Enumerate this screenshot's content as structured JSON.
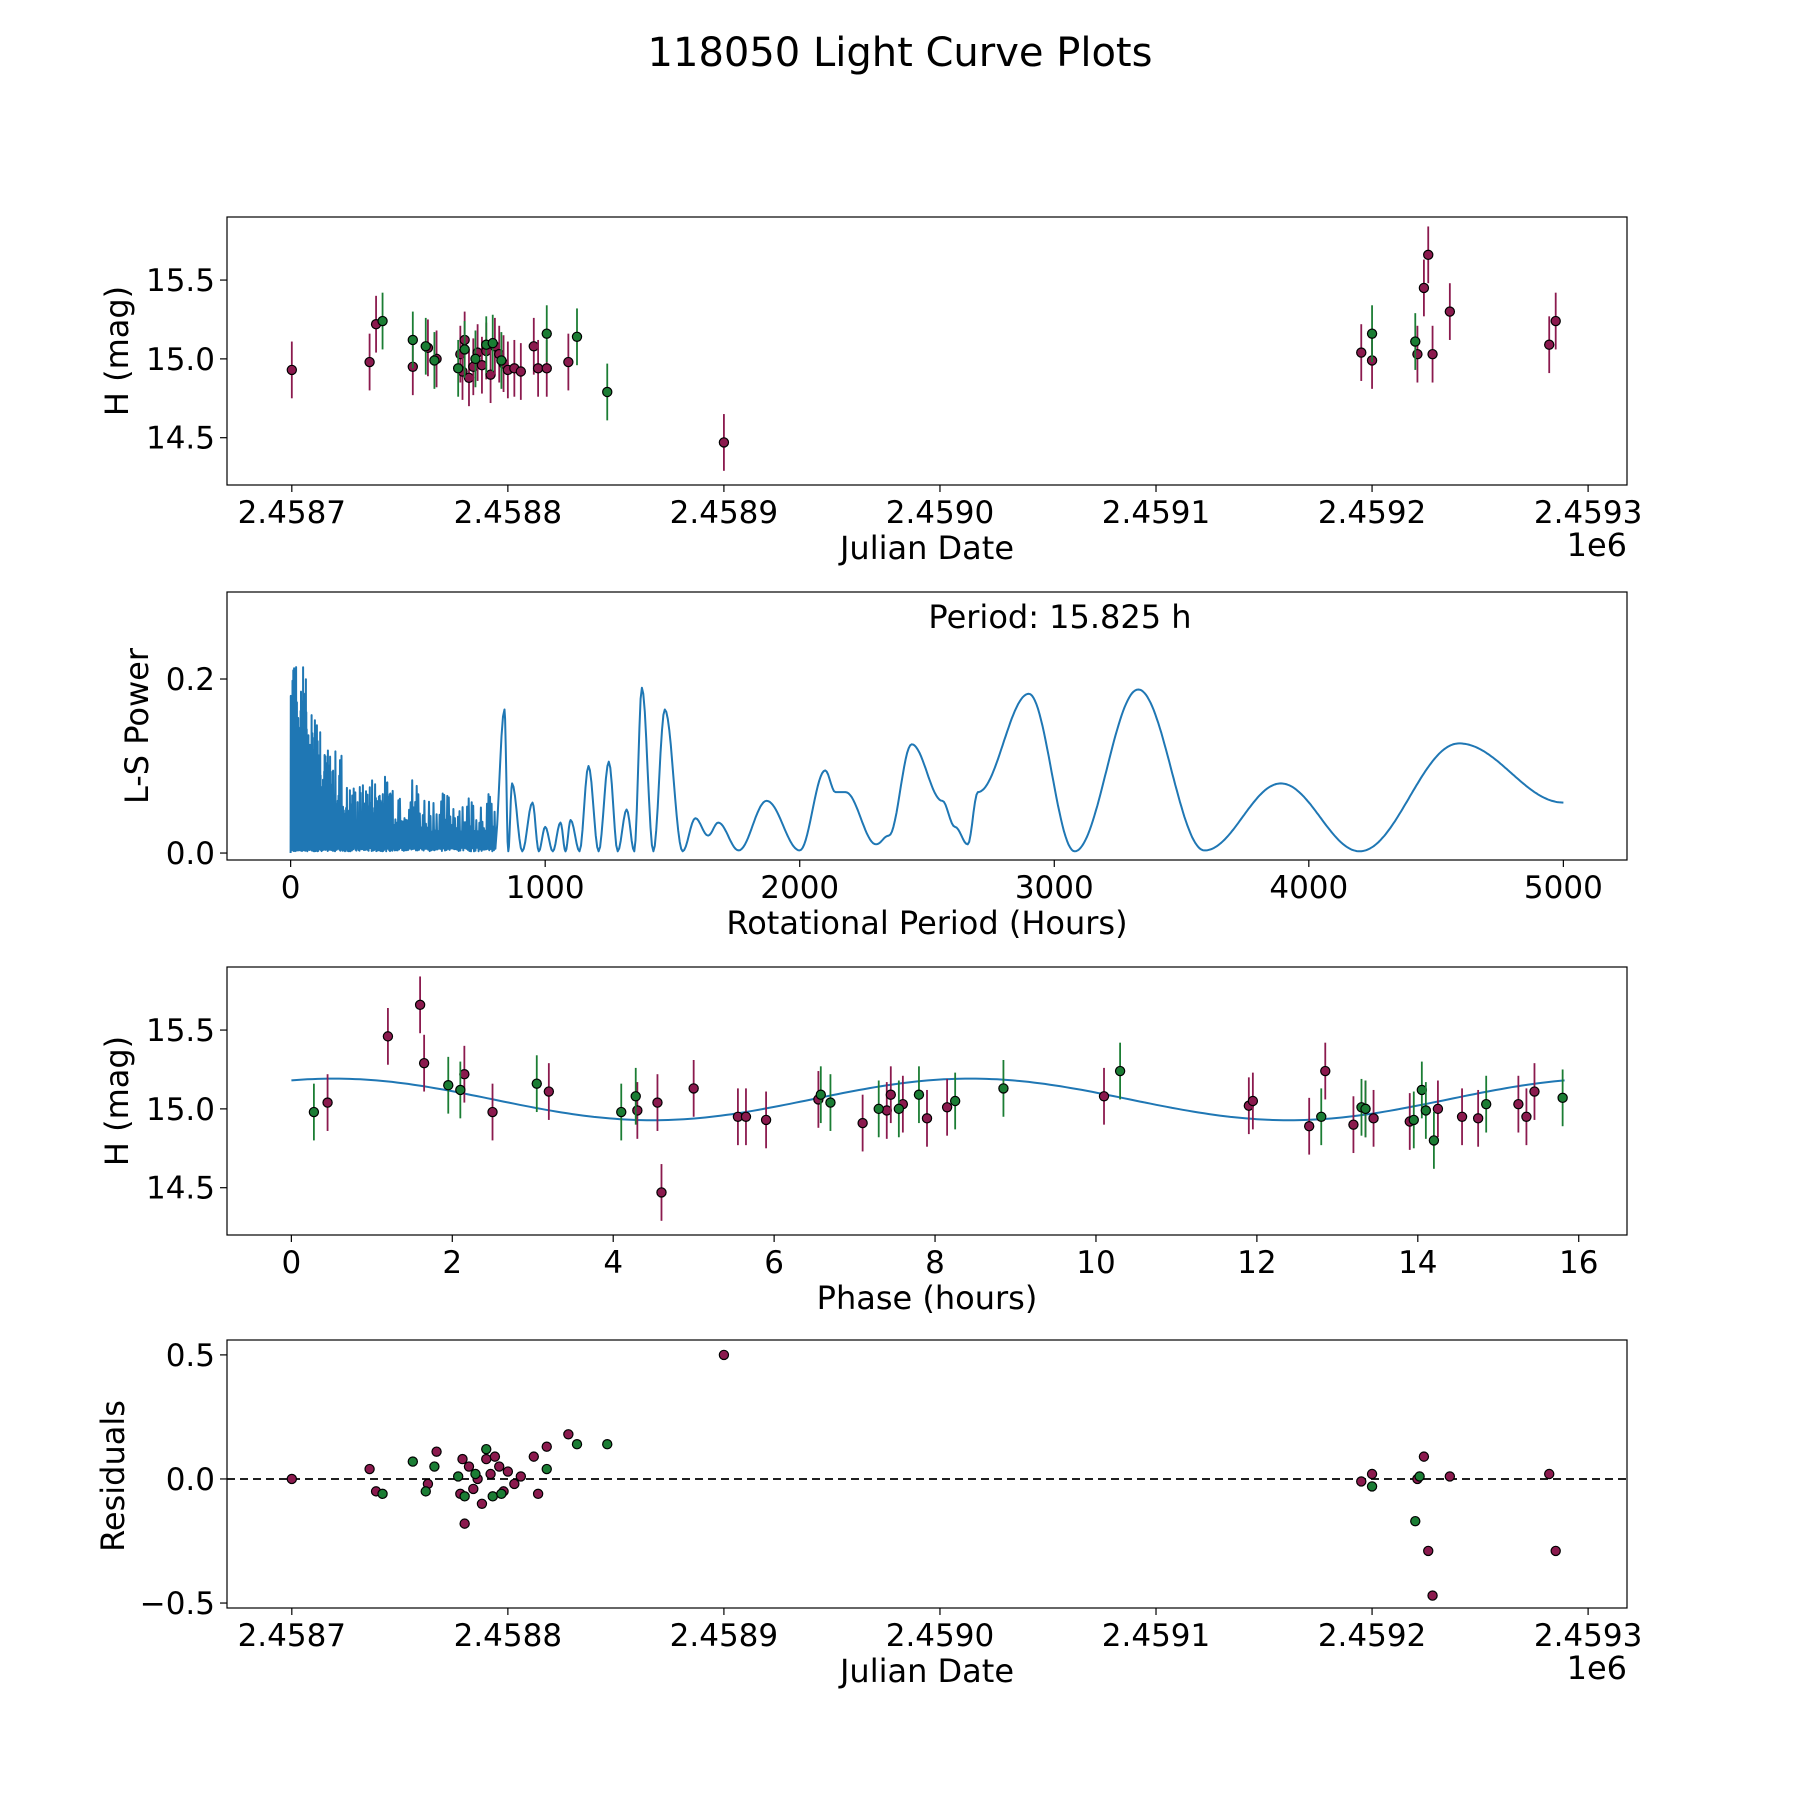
{
  "figure_title": "118050 Light Curve Plots",
  "colors": {
    "magenta": "#8b1a4e",
    "green": "#1b7d34",
    "curve": "#1f77b4",
    "marker_edge": "#000000"
  },
  "chart_data": [
    {
      "id": "lightcurve",
      "type": "scatter",
      "title": "",
      "xlabel": "Julian Date",
      "ylabel": "H (mag)",
      "x_offset_label": "1e6",
      "xlim": [
        2458670,
        2459318
      ],
      "ylim": [
        14.2,
        15.9
      ],
      "xticks": [
        2458700,
        2458800,
        2458900,
        2459000,
        2459100,
        2459200,
        2459300
      ],
      "xtick_labels": [
        "2.4587",
        "2.4588",
        "2.4589",
        "2.4590",
        "2.4591",
        "2.4592",
        "2.4593"
      ],
      "yticks": [
        14.5,
        15.0,
        15.5
      ],
      "ytick_labels": [
        "14.5",
        "15.0",
        "15.5"
      ],
      "series": [
        {
          "name": "magenta",
          "color": "#8b1a4e",
          "err": 0.18,
          "x": [
            2458700,
            2458736,
            2458739,
            2458756,
            2458763,
            2458767,
            2458778,
            2458779,
            2458780,
            2458782,
            2458784,
            2458786,
            2458788,
            2458790,
            2458792,
            2458794,
            2458796,
            2458798,
            2458800,
            2458803,
            2458806,
            2458812,
            2458814,
            2458818,
            2458828,
            2458900,
            2459195,
            2459200,
            2459221,
            2459224,
            2459226,
            2459228,
            2459236,
            2459282,
            2459285
          ],
          "y": [
            14.93,
            14.98,
            15.22,
            14.95,
            15.07,
            15.0,
            15.03,
            14.92,
            15.12,
            14.88,
            14.95,
            15.04,
            14.96,
            15.05,
            14.9,
            15.08,
            15.03,
            14.97,
            14.93,
            14.94,
            14.92,
            15.08,
            14.94,
            14.94,
            14.98,
            14.47,
            15.04,
            14.99,
            15.03,
            15.45,
            15.66,
            15.03,
            15.3,
            15.09,
            15.24
          ]
        },
        {
          "name": "green",
          "color": "#1b7d34",
          "err": 0.18,
          "x": [
            2458742,
            2458756,
            2458762,
            2458766,
            2458777,
            2458780,
            2458785,
            2458790,
            2458793,
            2458797,
            2458818,
            2458832,
            2458846,
            2459200,
            2459220
          ],
          "y": [
            15.24,
            15.12,
            15.08,
            14.99,
            14.94,
            15.06,
            15.0,
            15.09,
            15.1,
            14.99,
            15.16,
            15.14,
            14.79,
            15.16,
            15.11
          ]
        }
      ]
    },
    {
      "id": "periodogram",
      "type": "line",
      "title": "",
      "annotation": "Period: 15.825 h",
      "xlabel": "Rotational Period (Hours)",
      "ylabel": "L-S Power",
      "xlim": [
        -250,
        5250
      ],
      "ylim": [
        -0.008,
        0.3
      ],
      "xticks": [
        0,
        1000,
        2000,
        3000,
        4000,
        5000
      ],
      "xtick_labels": [
        "0",
        "1000",
        "2000",
        "3000",
        "4000",
        "5000"
      ],
      "yticks": [
        0.0,
        0.2
      ],
      "ytick_labels": [
        "0.0",
        "0.2"
      ],
      "peaks": [
        [
          840,
          0.165
        ],
        [
          870,
          0.08
        ],
        [
          950,
          0.058
        ],
        [
          1000,
          0.03
        ],
        [
          1060,
          0.035
        ],
        [
          1100,
          0.038
        ],
        [
          1170,
          0.1
        ],
        [
          1250,
          0.105
        ],
        [
          1320,
          0.05
        ],
        [
          1380,
          0.19
        ],
        [
          1470,
          0.165
        ],
        [
          1590,
          0.04
        ],
        [
          1680,
          0.035
        ],
        [
          1870,
          0.06
        ],
        [
          2100,
          0.095
        ],
        [
          2180,
          0.07
        ],
        [
          2440,
          0.125
        ],
        [
          2560,
          0.06
        ],
        [
          2700,
          0.07
        ],
        [
          2900,
          0.183
        ],
        [
          3330,
          0.188
        ],
        [
          3890,
          0.08
        ],
        [
          4590,
          0.126
        ]
      ],
      "troughs": [
        [
          1540,
          0.002
        ],
        [
          1640,
          0.02
        ],
        [
          1760,
          0.003
        ],
        [
          2000,
          0.003
        ],
        [
          2140,
          0.07
        ],
        [
          2300,
          0.01
        ],
        [
          2350,
          0.02
        ],
        [
          2610,
          0.03
        ],
        [
          2660,
          0.01
        ],
        [
          3080,
          0.002
        ],
        [
          3590,
          0.003
        ],
        [
          4200,
          0.002
        ]
      ],
      "end_point": [
        5000,
        0.058
      ],
      "noisy_region_max_x": 800
    },
    {
      "id": "phased",
      "type": "scatter",
      "title": "",
      "xlabel": "Phase (hours)",
      "ylabel": "H (mag)",
      "xlim": [
        -0.8,
        16.6
      ],
      "ylim": [
        14.2,
        15.9
      ],
      "xticks": [
        0,
        2,
        4,
        6,
        8,
        10,
        12,
        14,
        16
      ],
      "xtick_labels": [
        "0",
        "2",
        "4",
        "6",
        "8",
        "10",
        "12",
        "14",
        "16"
      ],
      "yticks": [
        14.5,
        15.0,
        15.5
      ],
      "ytick_labels": [
        "14.5",
        "15.0",
        "15.5"
      ],
      "model": {
        "period_hours": 15.825,
        "mean": 15.06,
        "amp": 0.132,
        "phi": 1.15
      },
      "series": [
        {
          "name": "magenta",
          "color": "#8b1a4e",
          "err": 0.18,
          "x": [
            0.45,
            1.2,
            1.6,
            1.65,
            2.15,
            2.5,
            3.2,
            4.3,
            4.55,
            4.6,
            5.0,
            5.55,
            5.65,
            5.9,
            6.55,
            7.1,
            7.4,
            7.45,
            7.6,
            7.9,
            8.15,
            10.1,
            11.9,
            11.95,
            12.65,
            12.85,
            13.2,
            13.35,
            13.45,
            13.9,
            14.25,
            14.55,
            14.75,
            15.25,
            15.35,
            15.45
          ],
          "y": [
            15.04,
            15.46,
            15.66,
            15.29,
            15.22,
            14.98,
            15.11,
            14.99,
            15.04,
            14.47,
            15.13,
            14.95,
            14.95,
            14.93,
            15.06,
            14.91,
            14.99,
            15.09,
            15.03,
            14.94,
            15.01,
            15.08,
            15.02,
            15.05,
            14.89,
            15.24,
            14.9,
            15.0,
            14.94,
            14.92,
            15.0,
            14.95,
            14.94,
            15.03,
            14.95,
            15.11
          ]
        },
        {
          "name": "green",
          "color": "#1b7d34",
          "err": 0.18,
          "x": [
            0.28,
            1.95,
            2.1,
            3.05,
            4.1,
            4.28,
            6.58,
            6.7,
            7.3,
            7.55,
            7.8,
            8.25,
            8.85,
            10.3,
            12.8,
            13.3,
            13.35,
            13.95,
            14.05,
            14.1,
            14.2,
            14.85,
            15.8
          ],
          "y": [
            14.98,
            15.15,
            15.12,
            15.16,
            14.98,
            15.08,
            15.09,
            15.04,
            15.0,
            15.0,
            15.09,
            15.05,
            15.13,
            15.24,
            14.95,
            15.01,
            15.0,
            14.93,
            15.12,
            14.99,
            14.8,
            15.03,
            15.07
          ]
        }
      ]
    },
    {
      "id": "residuals",
      "type": "scatter",
      "title": "",
      "xlabel": "Julian Date",
      "ylabel": "Residuals",
      "x_offset_label": "1e6",
      "xlim": [
        2458670,
        2459318
      ],
      "ylim": [
        -0.52,
        0.56
      ],
      "xticks": [
        2458700,
        2458800,
        2458900,
        2459000,
        2459100,
        2459200,
        2459300
      ],
      "xtick_labels": [
        "2.4587",
        "2.4588",
        "2.4589",
        "2.4590",
        "2.4591",
        "2.4592",
        "2.4593"
      ],
      "yticks": [
        -0.5,
        0.0,
        0.5
      ],
      "ytick_labels": [
        "−0.5",
        "0.0",
        "0.5"
      ],
      "zero_line": 0.0,
      "series": [
        {
          "name": "magenta",
          "color": "#8b1a4e",
          "x": [
            2458700,
            2458736,
            2458739,
            2458763,
            2458767,
            2458778,
            2458779,
            2458780,
            2458782,
            2458784,
            2458786,
            2458788,
            2458790,
            2458792,
            2458794,
            2458796,
            2458798,
            2458800,
            2458803,
            2458806,
            2458812,
            2458814,
            2458818,
            2458828,
            2458900,
            2459195,
            2459200,
            2459221,
            2459224,
            2459226,
            2459228,
            2459236,
            2459282,
            2459285
          ],
          "y": [
            0.0,
            0.04,
            -0.05,
            -0.02,
            0.11,
            -0.06,
            0.08,
            -0.18,
            0.05,
            -0.04,
            0.0,
            -0.1,
            0.08,
            0.02,
            0.09,
            0.05,
            -0.05,
            0.03,
            -0.02,
            0.01,
            0.09,
            -0.06,
            0.13,
            0.18,
            0.5,
            -0.01,
            0.02,
            0.0,
            0.09,
            -0.29,
            -0.47,
            0.01,
            0.02,
            -0.29
          ]
        },
        {
          "name": "green",
          "color": "#1b7d34",
          "x": [
            2458742,
            2458756,
            2458762,
            2458766,
            2458777,
            2458780,
            2458785,
            2458790,
            2458793,
            2458797,
            2458818,
            2458832,
            2458846,
            2459200,
            2459220,
            2459222
          ],
          "y": [
            -0.06,
            0.07,
            -0.05,
            0.05,
            0.01,
            -0.07,
            0.02,
            0.12,
            -0.07,
            -0.06,
            0.04,
            0.14,
            0.14,
            -0.03,
            -0.17,
            0.01
          ]
        }
      ]
    }
  ]
}
